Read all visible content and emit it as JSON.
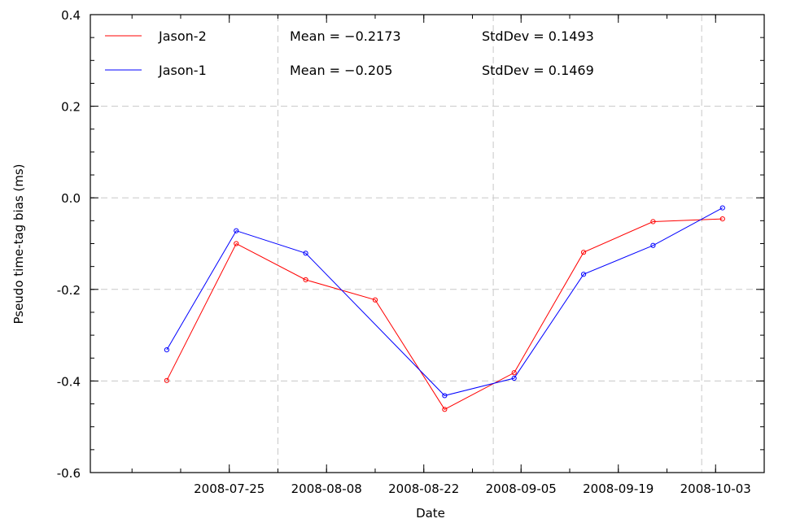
{
  "chart_data": {
    "type": "line",
    "xlabel": "Date",
    "ylabel": "Pseudo time-tag bias (ms)",
    "ylim": [
      -0.6,
      0.4
    ],
    "yticks": [
      "0.4",
      "0.2",
      "0.0",
      "-0.2",
      "-0.4",
      "-0.6"
    ],
    "xticks": [
      "2008-07-25",
      "2008-08-08",
      "2008-08-22",
      "2008-09-05",
      "2008-09-19",
      "2008-10-03"
    ],
    "grid": true,
    "legend_position": "top-left",
    "series": [
      {
        "name": "Jason-2",
        "color": "#ff0000",
        "x": [
          "2008-07-16",
          "2008-07-26",
          "2008-08-05",
          "2008-08-15",
          "2008-08-25",
          "2008-09-04",
          "2008-09-14",
          "2008-09-24",
          "2008-10-04"
        ],
        "y": [
          -0.399,
          -0.1,
          -0.179,
          -0.223,
          -0.462,
          -0.382,
          -0.119,
          -0.052,
          -0.046
        ],
        "mean_text": "Mean = −0.2173",
        "std_text": "StdDev = 0.1493"
      },
      {
        "name": "Jason-1",
        "color": "#0000ff",
        "x": [
          "2008-07-16",
          "2008-07-26",
          "2008-08-05",
          "2008-08-25",
          "2008-09-04",
          "2008-09-14",
          "2008-09-24",
          "2008-10-04"
        ],
        "y": [
          -0.332,
          -0.072,
          -0.121,
          -0.432,
          -0.394,
          -0.167,
          -0.104,
          -0.022
        ],
        "mean_text": "Mean = −0.205",
        "std_text": "StdDev = 0.1469"
      }
    ]
  }
}
